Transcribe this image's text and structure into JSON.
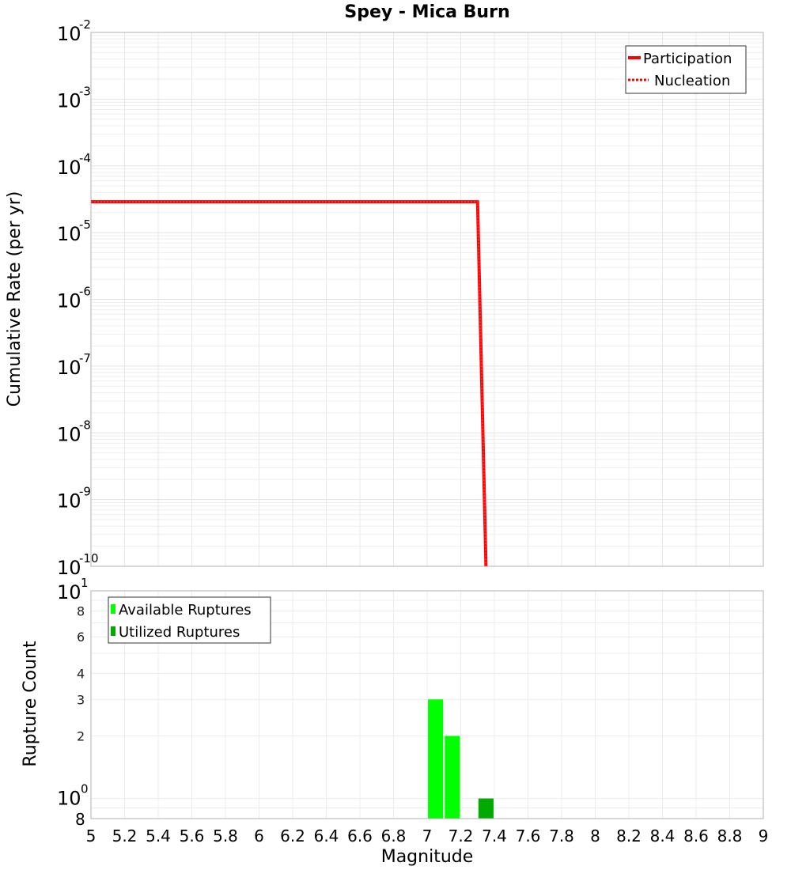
{
  "chart_data": [
    {
      "type": "line",
      "title": "Spey - Mica Burn",
      "xlabel": "Magnitude",
      "ylabel": "Cumulative Rate (per yr)",
      "yscale": "log",
      "xlim": [
        5,
        9
      ],
      "ylim": [
        1e-10,
        0.01
      ],
      "grid": true,
      "legend_position": "upper right",
      "y_ticks": [
        "10^-2",
        "10^-3",
        "10^-4",
        "10^-5",
        "10^-6",
        "10^-7",
        "10^-8",
        "10^-9",
        "10^-10"
      ],
      "series": [
        {
          "name": "Participation",
          "color": "#ff0000",
          "style": "solid",
          "x": [
            5.0,
            7.3,
            7.35
          ],
          "y": [
            2.9e-05,
            2.9e-05,
            1e-10
          ]
        },
        {
          "name": "Nucleation",
          "color": "#ff0000",
          "style": "dotted",
          "x": [
            5.0,
            7.3,
            7.35
          ],
          "y": [
            2.9e-05,
            2.9e-05,
            1e-10
          ]
        }
      ]
    },
    {
      "type": "bar",
      "xlabel": "Magnitude",
      "ylabel": "Rupture Count",
      "yscale": "log",
      "xlim": [
        5,
        9
      ],
      "ylim": [
        0.8,
        10
      ],
      "grid": true,
      "legend_position": "upper left",
      "x_ticks": [
        "5",
        "5.2",
        "5.4",
        "5.6",
        "5.8",
        "6",
        "6.2",
        "6.4",
        "6.6",
        "6.8",
        "7",
        "7.2",
        "7.4",
        "7.6",
        "7.8",
        "8",
        "8.2",
        "8.4",
        "8.6",
        "8.8",
        "9"
      ],
      "y_ticks": [
        "10^1",
        "8",
        "6",
        "4",
        "3",
        "2",
        "10^0",
        "8"
      ],
      "series": [
        {
          "name": "Available Ruptures",
          "color": "#00ff00",
          "x": [
            7.05,
            7.15
          ],
          "values": [
            3,
            2
          ]
        },
        {
          "name": "Utilized Ruptures",
          "color": "#00aa00",
          "x": [
            7.35
          ],
          "values": [
            1
          ]
        }
      ]
    }
  ],
  "labels": {
    "title": "Spey - Mica Burn",
    "top_ylabel": "Cumulative Rate (per yr)",
    "bottom_ylabel": "Rupture Count",
    "xlabel": "Magnitude",
    "legend_top": [
      "Participation",
      "Nucleation"
    ],
    "legend_bottom": [
      "Available Ruptures",
      "Utilized Ruptures"
    ]
  }
}
